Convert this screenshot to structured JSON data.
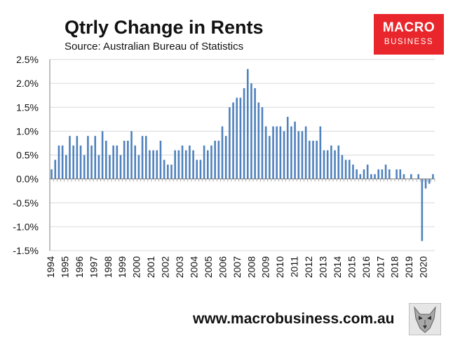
{
  "chart_data": {
    "type": "bar",
    "title": "Qtrly Change in Rents",
    "subtitle": "Source: Australian Bureau of Statistics",
    "ylim": [
      -1.5,
      2.5
    ],
    "y_ticks": [
      "2.5%",
      "2.0%",
      "1.5%",
      "1.0%",
      "0.5%",
      "0.0%",
      "-0.5%",
      "-1.0%",
      "-1.5%"
    ],
    "x_year_labels": [
      "1994",
      "1995",
      "1996",
      "1997",
      "1998",
      "1999",
      "2000",
      "2001",
      "2002",
      "2003",
      "2004",
      "2005",
      "2006",
      "2007",
      "2008",
      "2009",
      "2010",
      "2011",
      "2012",
      "2013",
      "2014",
      "2015",
      "2016",
      "2017",
      "2018",
      "2019",
      "2020"
    ],
    "gridlines": true,
    "series": [
      {
        "values": [
          0.2,
          0.4,
          0.7,
          0.7,
          0.5,
          0.9,
          0.7,
          0.9,
          0.7,
          0.5,
          0.9,
          0.7,
          0.9,
          0.5,
          1.0,
          0.8,
          0.5,
          0.7,
          0.7,
          0.5,
          0.8,
          0.8,
          1.0,
          0.7,
          0.5,
          0.9,
          0.9,
          0.6,
          0.6,
          0.6,
          0.8,
          0.4,
          0.3,
          0.3,
          0.6,
          0.6,
          0.7,
          0.6,
          0.7,
          0.6,
          0.4,
          0.4,
          0.7,
          0.6,
          0.7,
          0.8,
          0.8,
          1.1,
          0.9,
          1.5,
          1.6,
          1.7,
          1.7,
          1.9,
          2.3,
          2.0,
          1.9,
          1.6,
          1.5,
          1.1,
          0.9,
          1.1,
          1.1,
          1.1,
          1.0,
          1.3,
          1.1,
          1.2,
          1.0,
          1.0,
          1.1,
          0.8,
          0.8,
          0.8,
          1.1,
          0.6,
          0.6,
          0.7,
          0.6,
          0.7,
          0.5,
          0.4,
          0.4,
          0.3,
          0.2,
          0.1,
          0.2,
          0.3,
          0.1,
          0.1,
          0.2,
          0.2,
          0.3,
          0.2,
          0.0,
          0.2,
          0.2,
          0.1,
          0.0,
          0.1,
          0.0,
          0.1,
          -1.3,
          -0.2,
          -0.1,
          0.1
        ]
      }
    ]
  },
  "branding": {
    "logo_top": "MACRO",
    "logo_bottom": "BUSINESS",
    "footer_url": "www.macrobusiness.com.au"
  },
  "colors": {
    "bar": "#4f81bd",
    "logo_bg": "#e8262b",
    "grid": "#d9d9d9",
    "axis": "#808080"
  }
}
